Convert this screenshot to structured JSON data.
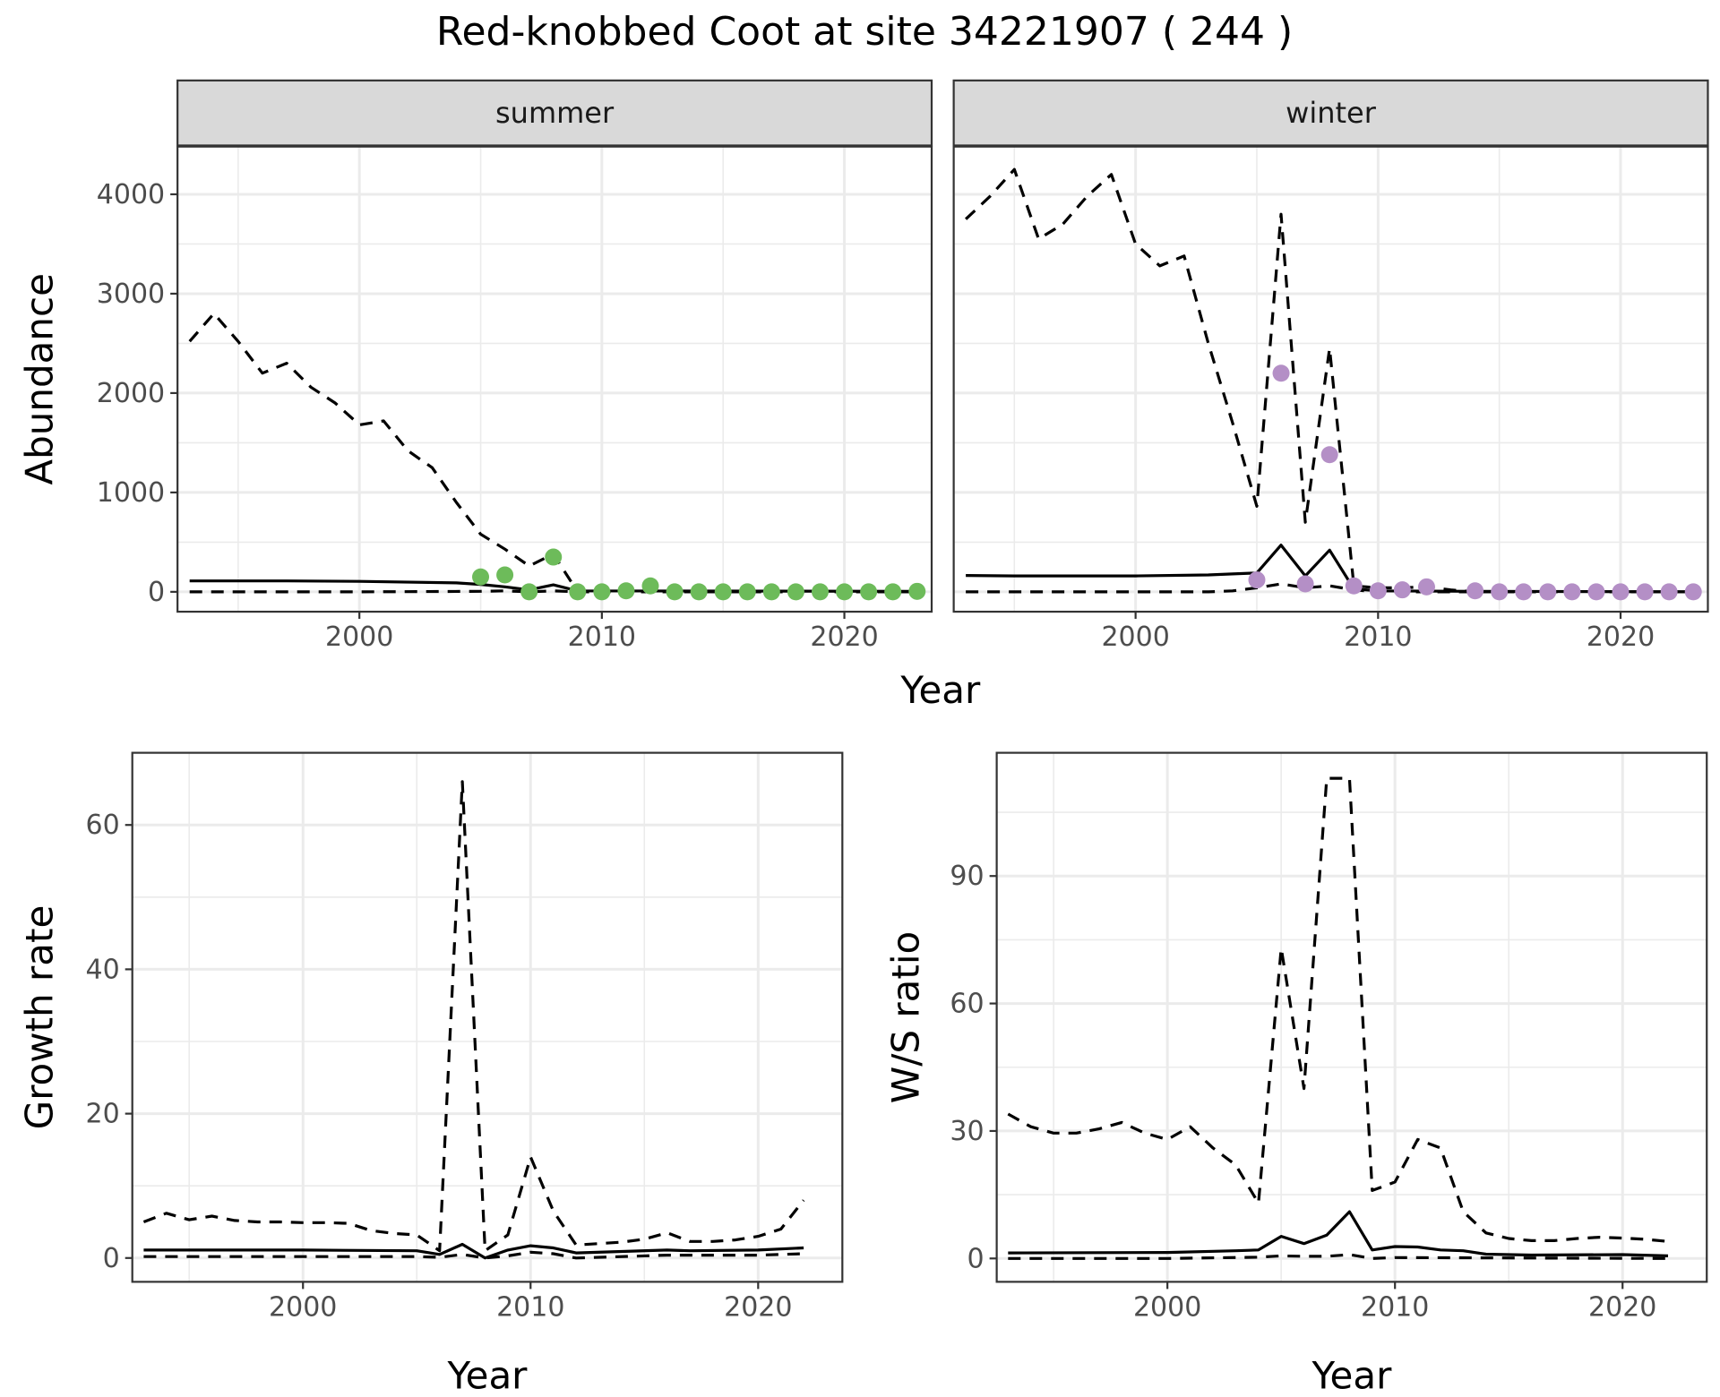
{
  "title": "Red-knobbed Coot at site 34221907 ( 244 )",
  "colors": {
    "summer_points": "#6dbb5a",
    "winter_points": "#b48fc6",
    "line": "#000000",
    "strip_bg": "#d9d9d9",
    "grid": "#ebebeb",
    "border": "#333333"
  },
  "chart_data": [
    {
      "type": "line",
      "facet": "summer",
      "title": "summer",
      "xlabel": "Year",
      "ylabel": "Abundance",
      "xlim": [
        1992.5,
        2023.6
      ],
      "ylim": [
        -200,
        4480
      ],
      "xticks": [
        2000,
        2010,
        2020
      ],
      "yticks": [
        0,
        1000,
        2000,
        3000,
        4000
      ],
      "grid": true,
      "series": [
        {
          "name": "upper",
          "style": "dashed",
          "x": [
            1993,
            1994,
            1995,
            1996,
            1997,
            1998,
            1999,
            2000,
            2001,
            2002,
            2003,
            2004,
            2005,
            2006,
            2007,
            2008,
            2009
          ],
          "y": [
            2520,
            2800,
            2520,
            2200,
            2300,
            2060,
            1900,
            1680,
            1720,
            1420,
            1250,
            900,
            580,
            430,
            260,
            380,
            0
          ]
        },
        {
          "name": "mean",
          "style": "solid",
          "x": [
            1993,
            1997,
            2000,
            2004,
            2005,
            2006,
            2007,
            2008,
            2009,
            2023
          ],
          "y": [
            110,
            110,
            105,
            90,
            75,
            50,
            20,
            70,
            10,
            5
          ]
        },
        {
          "name": "lower",
          "style": "dashed",
          "x": [
            1993,
            2000,
            2005,
            2006,
            2007,
            2008,
            2009,
            2023
          ],
          "y": [
            0,
            0,
            5,
            10,
            0,
            10,
            0,
            0
          ]
        },
        {
          "name": "observed",
          "style": "points",
          "x": [
            2005,
            2006,
            2007,
            2008,
            2009,
            2010,
            2011,
            2012,
            2013,
            2014,
            2015,
            2016,
            2017,
            2018,
            2019,
            2020,
            2021,
            2022,
            2023
          ],
          "y": [
            150,
            170,
            0,
            350,
            0,
            0,
            10,
            60,
            0,
            0,
            0,
            0,
            0,
            0,
            0,
            0,
            0,
            0,
            5
          ]
        }
      ]
    },
    {
      "type": "line",
      "facet": "winter",
      "title": "winter",
      "xlabel": "Year",
      "ylabel": "Abundance",
      "xlim": [
        1992.5,
        2023.6
      ],
      "ylim": [
        -200,
        4480
      ],
      "xticks": [
        2000,
        2010,
        2020
      ],
      "yticks": [
        0,
        1000,
        2000,
        3000,
        4000
      ],
      "grid": true,
      "series": [
        {
          "name": "upper",
          "style": "dashed",
          "x": [
            1993,
            1994,
            1995,
            1996,
            1997,
            1998,
            1999,
            2000,
            2001,
            2002,
            2003,
            2004,
            2005,
            2006,
            2007,
            2008,
            2009,
            2010,
            2011,
            2012,
            2013,
            2014
          ],
          "y": [
            3750,
            3980,
            4250,
            3550,
            3700,
            3980,
            4200,
            3500,
            3280,
            3380,
            2500,
            1700,
            860,
            3800,
            700,
            2450,
            60,
            40,
            40,
            50,
            20,
            0
          ]
        },
        {
          "name": "mean",
          "style": "solid",
          "x": [
            1993,
            1995,
            2000,
            2003,
            2004,
            2005,
            2006,
            2007,
            2008,
            2009,
            2010,
            2014,
            2023
          ],
          "y": [
            165,
            160,
            160,
            170,
            180,
            190,
            470,
            160,
            420,
            30,
            10,
            5,
            0
          ]
        },
        {
          "name": "lower",
          "style": "dashed",
          "x": [
            1993,
            2003,
            2004,
            2005,
            2006,
            2007,
            2008,
            2009,
            2010,
            2023
          ],
          "y": [
            0,
            0,
            10,
            40,
            80,
            40,
            60,
            20,
            0,
            0
          ]
        },
        {
          "name": "observed",
          "style": "points",
          "x": [
            2005,
            2006,
            2007,
            2008,
            2009,
            2010,
            2011,
            2012,
            2014,
            2015,
            2016,
            2017,
            2018,
            2019,
            2020,
            2021,
            2022,
            2023
          ],
          "y": [
            120,
            2200,
            80,
            1380,
            60,
            10,
            20,
            50,
            10,
            0,
            0,
            0,
            0,
            0,
            0,
            0,
            0,
            0
          ]
        }
      ]
    },
    {
      "type": "line",
      "title": "",
      "xlabel": "Year",
      "ylabel": "Growth rate",
      "xlim": [
        1992.5,
        2023.7
      ],
      "ylim": [
        -3.3,
        70
      ],
      "xticks": [
        2000,
        2010,
        2020
      ],
      "yticks": [
        0,
        20,
        40,
        60
      ],
      "grid": true,
      "series": [
        {
          "name": "upper",
          "style": "dashed",
          "x": [
            1993,
            1994,
            1995,
            1996,
            1997,
            1998,
            1999,
            2000,
            2001,
            2002,
            2003,
            2004,
            2005,
            2006,
            2007,
            2008,
            2009,
            2010,
            2011,
            2012,
            2013,
            2014,
            2015,
            2016,
            2017,
            2018,
            2019,
            2020,
            2021,
            2022
          ],
          "y": [
            5,
            6.2,
            5.3,
            5.8,
            5.2,
            5,
            5,
            4.9,
            4.9,
            4.8,
            3.8,
            3.4,
            3.2,
            1.0,
            66,
            1.0,
            3.2,
            14,
            6.5,
            1.8,
            2.0,
            2.2,
            2.6,
            3.5,
            2.3,
            2.3,
            2.5,
            3.0,
            4.0,
            8.0
          ]
        },
        {
          "name": "mean",
          "style": "solid",
          "x": [
            1993,
            2000,
            2005,
            2006,
            2007,
            2008,
            2009,
            2010,
            2011,
            2012,
            2016,
            2017,
            2020,
            2022
          ],
          "y": [
            1.1,
            1.1,
            1.0,
            0.5,
            1.9,
            0.0,
            1.1,
            1.7,
            1.4,
            0.7,
            1.1,
            1.0,
            1.1,
            1.4
          ]
        },
        {
          "name": "lower",
          "style": "dashed",
          "x": [
            1993,
            2000,
            2005,
            2006,
            2007,
            2008,
            2009,
            2010,
            2011,
            2012,
            2016,
            2020,
            2022
          ],
          "y": [
            0.2,
            0.2,
            0.2,
            0.1,
            0.5,
            0.0,
            0.3,
            0.8,
            0.6,
            0.0,
            0.4,
            0.4,
            0.6
          ]
        }
      ]
    },
    {
      "type": "line",
      "title": "",
      "xlabel": "Year",
      "ylabel": "W/S ratio",
      "xlim": [
        1992.5,
        2023.7
      ],
      "ylim": [
        -5.5,
        119
      ],
      "xticks": [
        2000,
        2010,
        2020
      ],
      "yticks": [
        0,
        30,
        60,
        90
      ],
      "grid": true,
      "series": [
        {
          "name": "upper",
          "style": "dashed",
          "x": [
            1993,
            1994,
            1995,
            1996,
            1997,
            1998,
            1999,
            2000,
            2001,
            2002,
            2003,
            2004,
            2005,
            2006,
            2007,
            2008,
            2009,
            2010,
            2011,
            2012,
            2013,
            2014,
            2015,
            2016,
            2017,
            2018,
            2019,
            2020,
            2021,
            2022
          ],
          "y": [
            34,
            31,
            29.5,
            29.5,
            30.5,
            32,
            29.5,
            28,
            31,
            26,
            22,
            13,
            73,
            40,
            113,
            113,
            16,
            18,
            28,
            26,
            11,
            6,
            4.7,
            4.2,
            4.2,
            4.7,
            5.0,
            4.8,
            4.5,
            4.0
          ]
        },
        {
          "name": "mean",
          "style": "solid",
          "x": [
            1993,
            2000,
            2003,
            2004,
            2005,
            2006,
            2007,
            2008,
            2009,
            2010,
            2011,
            2012,
            2013,
            2014,
            2016,
            2020,
            2022
          ],
          "y": [
            1.3,
            1.4,
            1.8,
            2.0,
            5.2,
            3.5,
            5.5,
            11,
            2.0,
            2.8,
            2.7,
            2.0,
            1.8,
            1.0,
            0.8,
            0.9,
            0.6
          ]
        },
        {
          "name": "lower",
          "style": "dashed",
          "x": [
            1993,
            2000,
            2004,
            2005,
            2006,
            2007,
            2008,
            2009,
            2010,
            2022
          ],
          "y": [
            0,
            0,
            0.3,
            0.6,
            0.5,
            0.5,
            0.9,
            0,
            0.2,
            0
          ]
        }
      ]
    }
  ]
}
